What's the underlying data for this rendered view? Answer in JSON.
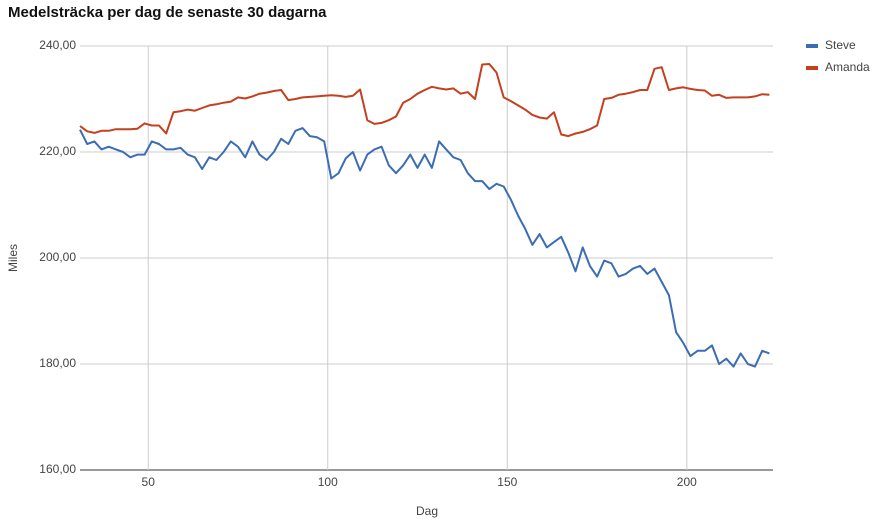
{
  "chart_data": {
    "type": "line",
    "title": "Medelsträcka per dag de senaste 30 dagarna",
    "x_label": "Dag",
    "y_label": "Miles",
    "x": [
      31,
      33,
      35,
      37,
      39,
      41,
      43,
      45,
      47,
      49,
      51,
      53,
      55,
      57,
      59,
      61,
      63,
      65,
      67,
      69,
      71,
      73,
      75,
      77,
      79,
      81,
      83,
      85,
      87,
      89,
      91,
      93,
      95,
      97,
      99,
      101,
      103,
      105,
      107,
      109,
      111,
      113,
      115,
      117,
      119,
      121,
      123,
      125,
      127,
      129,
      131,
      133,
      135,
      137,
      139,
      141,
      143,
      145,
      147,
      149,
      151,
      153,
      155,
      157,
      159,
      161,
      163,
      165,
      167,
      169,
      171,
      173,
      175,
      177,
      179,
      181,
      183,
      185,
      187,
      189,
      191,
      193,
      195,
      197,
      199,
      201,
      203,
      205,
      207,
      209,
      211,
      213,
      215,
      217,
      219,
      221,
      223
    ],
    "series": [
      {
        "name": "Steve",
        "color": "#3c6db4",
        "values": [
          224.2,
          221.5,
          222,
          220.5,
          221,
          220.5,
          220,
          219,
          219.5,
          219.5,
          222,
          221.5,
          220.5,
          220.5,
          220.8,
          219.5,
          219,
          216.8,
          219,
          218.5,
          220,
          222,
          221,
          219,
          222,
          219.5,
          218.5,
          220,
          222.5,
          221.5,
          224,
          224.5,
          223,
          222.8,
          222,
          215,
          216,
          218.8,
          220,
          216.5,
          219.5,
          220.5,
          221,
          217.5,
          216,
          217.5,
          219.5,
          217,
          219.5,
          217,
          222,
          220.5,
          219,
          218.5,
          216,
          214.5,
          214.5,
          213,
          214,
          213.5,
          211,
          208,
          205.5,
          202.5,
          204.5,
          202,
          203,
          204,
          201,
          197.5,
          202,
          198.5,
          196.5,
          199.5,
          199,
          196.5,
          197,
          198,
          198.5,
          197,
          198,
          195.5,
          193,
          186,
          184,
          181.5,
          182.5,
          182.5,
          183.5,
          180,
          181,
          179.5,
          182,
          180,
          179.5,
          182.5,
          182
        ]
      },
      {
        "name": "Amanda",
        "color": "#c4401f",
        "values": [
          224.9,
          223.9,
          223.6,
          224,
          224,
          224.3,
          224.3,
          224.3,
          224.4,
          225.4,
          225,
          225,
          223.5,
          227.5,
          227.7,
          228,
          227.8,
          228.3,
          228.8,
          229,
          229.3,
          229.5,
          230.3,
          230.1,
          230.5,
          231,
          231.2,
          231.5,
          231.7,
          229.8,
          230,
          230.3,
          230.4,
          230.5,
          230.6,
          230.7,
          230.6,
          230.4,
          230.6,
          231.8,
          226,
          225.3,
          225.5,
          226,
          226.7,
          229.3,
          230,
          231,
          231.7,
          232.3,
          232,
          231.8,
          232,
          231,
          231.3,
          230,
          236.5,
          236.6,
          235,
          230.3,
          229.6,
          228.8,
          228,
          227,
          226.5,
          226.3,
          227.5,
          223.3,
          223,
          223.5,
          223.8,
          224.3,
          225,
          230,
          230.2,
          230.8,
          231,
          231.3,
          231.7,
          231.7,
          235.7,
          236,
          231.7,
          232,
          232.2,
          231.9,
          231.7,
          231.6,
          230.6,
          230.8,
          230.2,
          230.3,
          230.3,
          230.3,
          230.5,
          230.9,
          230.8
        ]
      }
    ],
    "xlim": [
      31,
      224
    ],
    "xticks": [
      50,
      100,
      150,
      200
    ],
    "ylim": [
      160,
      240
    ],
    "yticks": [
      {
        "value": 160,
        "label": "160,00"
      },
      {
        "value": 180,
        "label": "180,00"
      },
      {
        "value": 200,
        "label": "200,00"
      },
      {
        "value": 220,
        "label": "220,00"
      },
      {
        "value": 240,
        "label": "240,00"
      }
    ],
    "grid": true,
    "legend": "right"
  }
}
